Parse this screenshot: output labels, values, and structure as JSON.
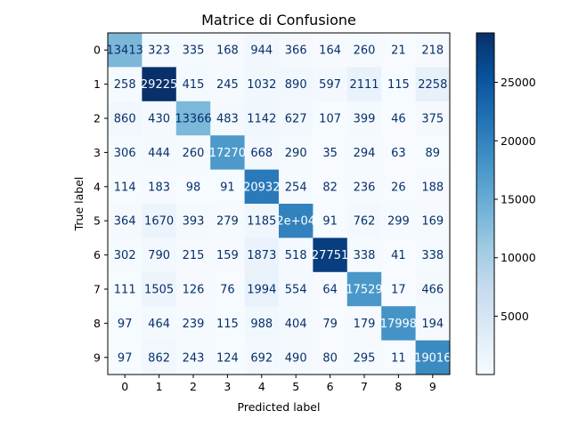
{
  "chart_data": {
    "type": "heatmap",
    "title": "Matrice di Confusione",
    "xlabel": "Predicted label",
    "ylabel": "True label",
    "x_ticks": [
      "0",
      "1",
      "2",
      "3",
      "4",
      "5",
      "6",
      "7",
      "8",
      "9"
    ],
    "y_ticks": [
      "0",
      "1",
      "2",
      "3",
      "4",
      "5",
      "6",
      "7",
      "8",
      "9"
    ],
    "values": [
      [
        13413,
        323,
        335,
        168,
        944,
        366,
        164,
        260,
        21,
        218
      ],
      [
        258,
        29225,
        415,
        245,
        1032,
        890,
        597,
        2111,
        115,
        2258
      ],
      [
        860,
        430,
        13366,
        483,
        1142,
        627,
        107,
        399,
        46,
        375
      ],
      [
        306,
        444,
        260,
        17270,
        668,
        290,
        35,
        294,
        63,
        89
      ],
      [
        114,
        183,
        98,
        91,
        20932,
        254,
        82,
        236,
        26,
        188
      ],
      [
        364,
        1670,
        393,
        279,
        1185,
        20000,
        91,
        762,
        299,
        169
      ],
      [
        302,
        790,
        215,
        159,
        1873,
        518,
        27751,
        338,
        41,
        338
      ],
      [
        111,
        1505,
        126,
        76,
        1994,
        554,
        64,
        17529,
        17,
        466
      ],
      [
        97,
        464,
        239,
        115,
        988,
        404,
        79,
        179,
        17998,
        194
      ],
      [
        97,
        862,
        243,
        124,
        692,
        490,
        80,
        295,
        11,
        19016
      ]
    ],
    "cell_labels": [
      [
        "13413",
        "323",
        "335",
        "168",
        "944",
        "366",
        "164",
        "260",
        "21",
        "218"
      ],
      [
        "258",
        "29225",
        "415",
        "245",
        "1032",
        "890",
        "597",
        "2111",
        "115",
        "2258"
      ],
      [
        "860",
        "430",
        "13366",
        "483",
        "1142",
        "627",
        "107",
        "399",
        "46",
        "375"
      ],
      [
        "306",
        "444",
        "260",
        "17270",
        "668",
        "290",
        "35",
        "294",
        "63",
        "89"
      ],
      [
        "114",
        "183",
        "98",
        "91",
        "20932",
        "254",
        "82",
        "236",
        "26",
        "188"
      ],
      [
        "364",
        "1670",
        "393",
        "279",
        "1185",
        "2e+04",
        "91",
        "762",
        "299",
        "169"
      ],
      [
        "302",
        "790",
        "215",
        "159",
        "1873",
        "518",
        "27751",
        "338",
        "41",
        "338"
      ],
      [
        "111",
        "1505",
        "126",
        "76",
        "1994",
        "554",
        "64",
        "17529",
        "17",
        "466"
      ],
      [
        "97",
        "464",
        "239",
        "115",
        "988",
        "404",
        "79",
        "179",
        "17998",
        "194"
      ],
      [
        "97",
        "862",
        "243",
        "124",
        "692",
        "490",
        "80",
        "295",
        "11",
        "19016"
      ]
    ],
    "colormap": "Blues",
    "vmin": 11,
    "vmax": 29225,
    "colorbar_ticks": [
      5000,
      10000,
      15000,
      20000,
      25000
    ],
    "colorbar_tick_labels": [
      "5000",
      "10000",
      "15000",
      "20000",
      "25000"
    ],
    "text_color_dark": "#08306b",
    "text_color_light": "#ffffff"
  }
}
